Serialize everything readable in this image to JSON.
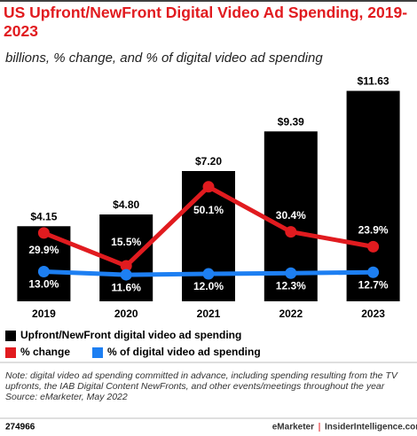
{
  "chart_data": {
    "type": "bar-line",
    "title": "US Upfront/NewFront Digital Video Ad Spending, 2019-2023",
    "subtitle": "billions, % change, and % of digital video ad spending",
    "categories": [
      "2019",
      "2020",
      "2021",
      "2022",
      "2023"
    ],
    "ylim": [
      0,
      12
    ],
    "y2lim": [
      0,
      95
    ],
    "series": [
      {
        "name": "Upfront/NewFront digital video ad spending",
        "color": "#000000",
        "kind": "bar",
        "values": [
          4.15,
          4.8,
          7.2,
          9.39,
          11.63
        ],
        "value_labels": [
          "$4.15",
          "$4.80",
          "$7.20",
          "$9.39",
          "$11.63"
        ]
      },
      {
        "name": "% change",
        "color": "#e11b1f",
        "kind": "line",
        "axis": "y2",
        "values": [
          29.9,
          15.5,
          50.1,
          30.4,
          23.9
        ],
        "value_labels": [
          "29.9%",
          "15.5%",
          "50.1%",
          "30.4%",
          "23.9%"
        ]
      },
      {
        "name": "% of digital video ad spending",
        "color": "#1d7ff2",
        "kind": "line",
        "axis": "y2",
        "values": [
          13.0,
          11.6,
          12.0,
          12.3,
          12.7
        ],
        "value_labels": [
          "13.0%",
          "11.6%",
          "12.0%",
          "12.3%",
          "12.7%"
        ]
      }
    ],
    "note": "Note: digital video ad spending committed in advance, including spending resulting from the TV upfronts, the IAB Digital Content NewFronts, and other events/meetings throughout the year",
    "source": "Source: eMarketer, May 2022",
    "chart_id": "274966",
    "brand": "eMarketer",
    "site": "InsiderIntelligence.com"
  }
}
